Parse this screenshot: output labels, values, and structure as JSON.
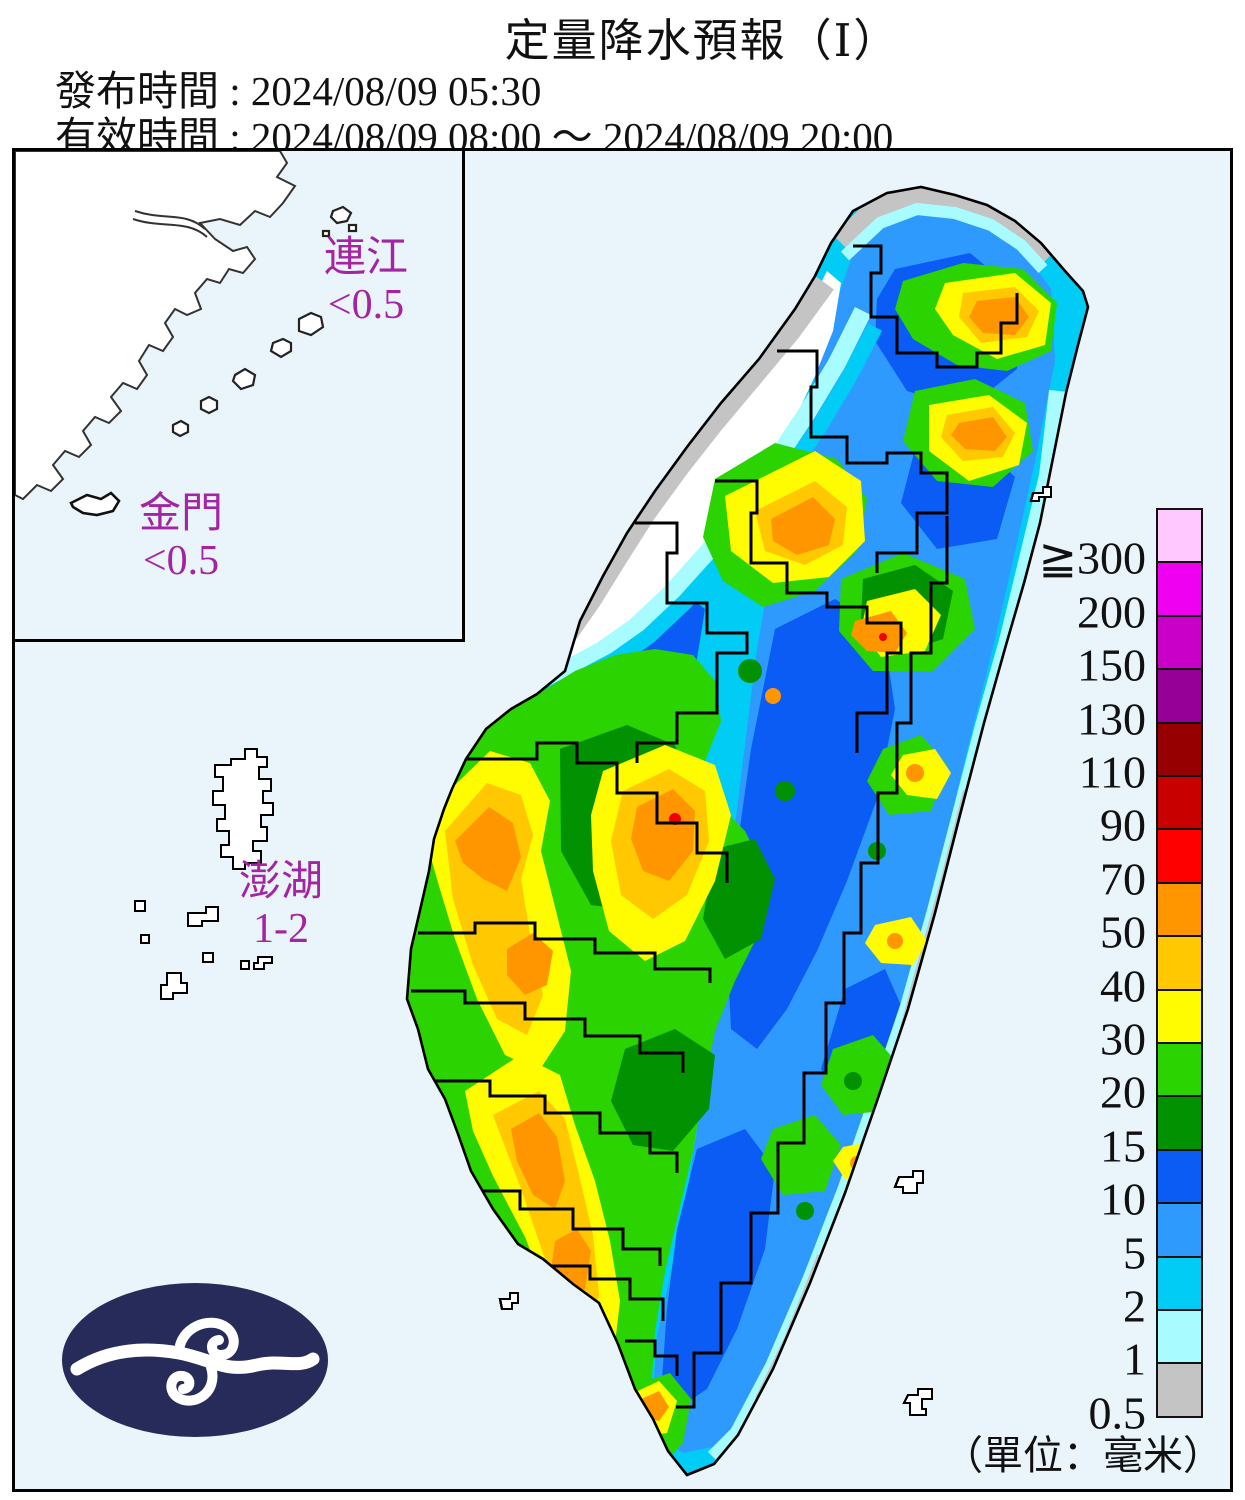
{
  "header": {
    "title": "定量降水預報（Ⅰ）",
    "colon": " : ",
    "issued": {
      "label": "發布時間",
      "value": "2024/08/09 05:30"
    },
    "valid": {
      "label": "有效時間",
      "value": "2024/08/09 08:00 ～ 2024/08/09 20:00"
    }
  },
  "map": {
    "labels": {
      "lienchiang": {
        "name": "連江",
        "value": "<0.5"
      },
      "kinmen": {
        "name": "金門",
        "value": "<0.5"
      },
      "penghu": {
        "name": "澎湖",
        "value": "1-2"
      }
    }
  },
  "legend": {
    "unit": "（單位：毫米）",
    "levels": [
      {
        "label": "≧300",
        "color": "#FFC8FF"
      },
      {
        "label": "200",
        "color": "#F000F0"
      },
      {
        "label": "150",
        "color": "#C800C8"
      },
      {
        "label": "130",
        "color": "#960096"
      },
      {
        "label": "110",
        "color": "#960000"
      },
      {
        "label": "90",
        "color": "#C80000"
      },
      {
        "label": "70",
        "color": "#FF0000"
      },
      {
        "label": "50",
        "color": "#FF9600"
      },
      {
        "label": "40",
        "color": "#FFC800"
      },
      {
        "label": "30",
        "color": "#FFFB00"
      },
      {
        "label": "20",
        "color": "#2BD300"
      },
      {
        "label": "15",
        "color": "#029201"
      },
      {
        "label": "10",
        "color": "#0B5CF5"
      },
      {
        "label": "5",
        "color": "#2E9AFE"
      },
      {
        "label": "2",
        "color": "#00CCF5"
      },
      {
        "label": "1",
        "color": "#A8FBFF"
      },
      {
        "label": "0.5",
        "color": "#C4C4C4"
      }
    ]
  },
  "colors": {
    "sea": "#E9F4FB",
    "label_purple": "#A325A3",
    "logo_navy": "#272B59"
  }
}
